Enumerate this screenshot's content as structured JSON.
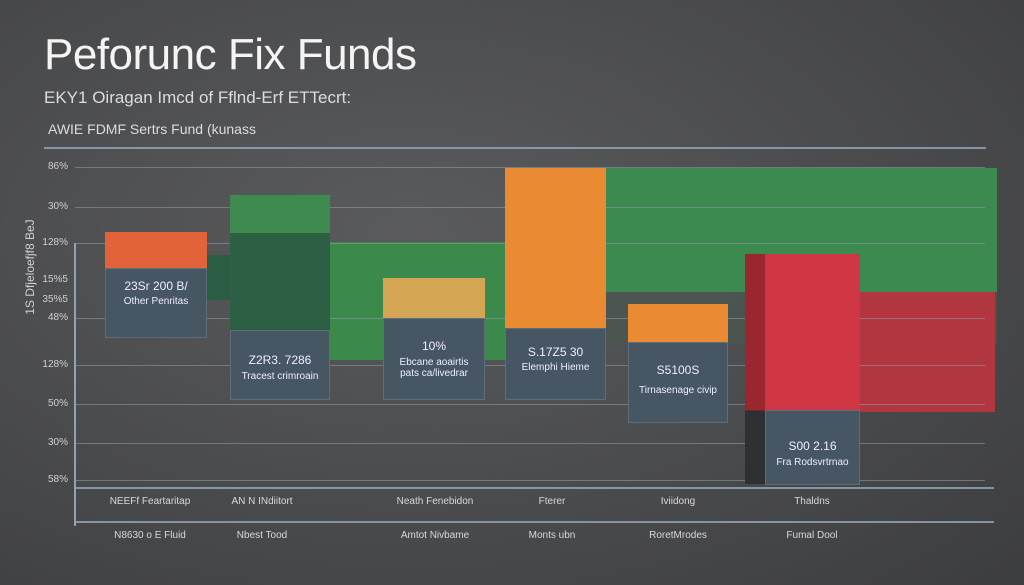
{
  "header": {
    "title": "Peforunc Fix Funds",
    "subtitle": "EKY1 Oiragan Imcd  of Fflnd-Erf  ETTecrt:",
    "caption": "AWIE FDMF Sertrs Fund (kunass"
  },
  "chart_data": {
    "type": "bar",
    "title": "Peforunc Fix Funds",
    "ylabel": "1S Dfjeloefjf8 BeJ",
    "y_ticks": [
      "86%",
      "30%",
      "128%",
      "15%5",
      "35%5",
      "48%",
      "128%",
      "50%",
      "30%",
      "58%"
    ],
    "categories_row1": [
      "NEEFf Feartaritap",
      "AN N INdiitort",
      "Neath Fenebidon",
      "Fterer",
      "Iviidong",
      "Thaldns"
    ],
    "categories_row2": [
      "N8630 o E Fluid",
      "Nbest Tood",
      "Amtot Nivbame",
      "Monts ubn",
      "RoretMrodes",
      "Fumal Dool"
    ],
    "grid": true,
    "bars": [
      {
        "annotation": "23Sr 200 B/",
        "sub": "Other Penritas",
        "color": "#e2633a"
      },
      {
        "annotation": "Z2R3. 7286",
        "sub": "Tracest crimroain",
        "color": "#2e6e4a"
      },
      {
        "annotation": "10%",
        "sub": "Ebcane aoairtis pats ca/livedrar",
        "color": "#d4a653"
      },
      {
        "annotation": "S.17Z5 30",
        "sub": "Elemphi Hieme",
        "color": "#ea8b34"
      },
      {
        "annotation": "S5100S",
        "sub": "Tirnasenage civip",
        "color": "#ea8b34"
      },
      {
        "annotation": "S00 2.16",
        "sub": "Fra Rodsvrtrnao",
        "color": "#cf3744"
      }
    ],
    "colors": {
      "green": "#3f8a4f",
      "dark_green": "#2c5f44",
      "red": "#cf3744",
      "orange": "#ea8b34",
      "slate": "#465663"
    }
  }
}
